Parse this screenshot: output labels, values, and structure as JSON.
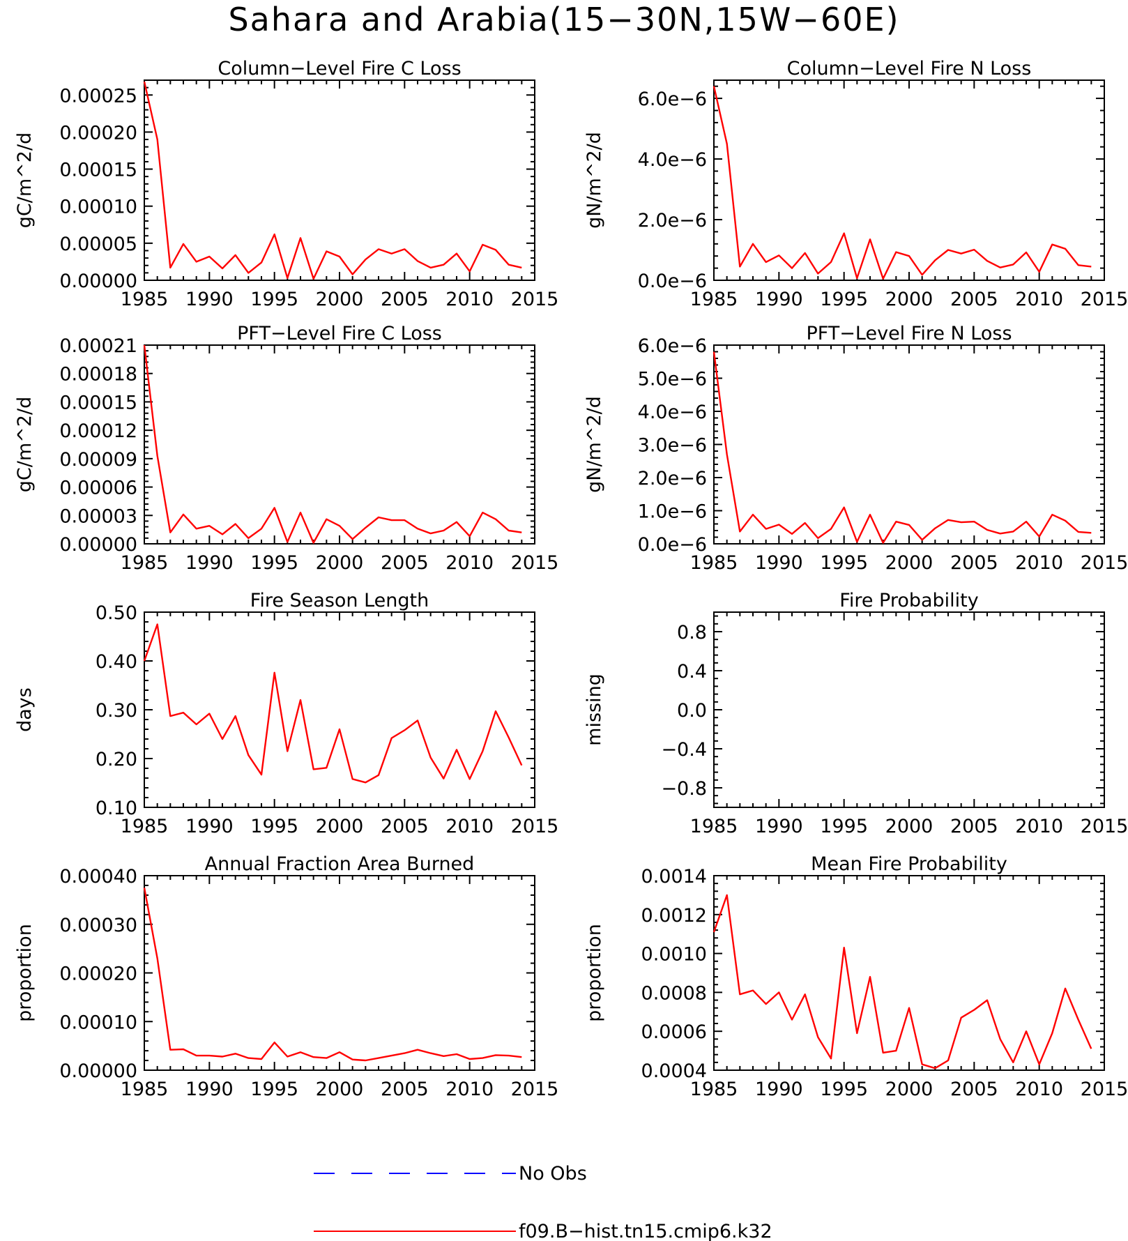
{
  "figure_title": "Sahara and Arabia(15−30N,15W−60E)",
  "legend": [
    {
      "label": "No Obs",
      "color": "#0000ff",
      "style": "dashed"
    },
    {
      "label": "f09.B−hist.tn15.cmip6.k32",
      "color": "#ff0000",
      "style": "solid"
    }
  ],
  "chart_data": [
    {
      "type": "line",
      "title": "Column−Level Fire C Loss",
      "ylabel": "gC/m^2/d",
      "xlim": [
        1985,
        2015
      ],
      "xticks": [
        1985,
        1990,
        1995,
        2000,
        2005,
        2010,
        2015
      ],
      "ylim": [
        0,
        0.00027
      ],
      "yticks": [
        0,
        5e-05,
        0.0001,
        0.00015,
        0.0002,
        0.00025
      ],
      "ytick_labels": [
        "0.00000",
        "0.00005",
        "0.00010",
        "0.00015",
        "0.00020",
        "0.00025"
      ],
      "series": [
        {
          "name": "f09.B−hist.tn15.cmip6.k32",
          "x": [
            1985,
            1986,
            1987,
            1988,
            1989,
            1990,
            1991,
            1992,
            1993,
            1994,
            1995,
            1996,
            1997,
            1998,
            1999,
            2000,
            2001,
            2002,
            2003,
            2004,
            2005,
            2006,
            2007,
            2008,
            2009,
            2010,
            2011,
            2012,
            2013,
            2014
          ],
          "y": [
            0.000268,
            0.00019,
            1.7e-05,
            4.9e-05,
            2.5e-05,
            3.2e-05,
            1.6e-05,
            3.4e-05,
            1e-05,
            2.4e-05,
            6.2e-05,
            3e-06,
            5.7e-05,
            2e-06,
            3.9e-05,
            3.2e-05,
            8e-06,
            2.8e-05,
            4.2e-05,
            3.6e-05,
            4.2e-05,
            2.6e-05,
            1.7e-05,
            2.1e-05,
            3.6e-05,
            1.2e-05,
            4.8e-05,
            4.1e-05,
            2.1e-05,
            1.7e-05
          ]
        }
      ]
    },
    {
      "type": "line",
      "title": "Column−Level Fire N Loss",
      "ylabel": "gN/m^2/d",
      "xlim": [
        1985,
        2015
      ],
      "xticks": [
        1985,
        1990,
        1995,
        2000,
        2005,
        2010,
        2015
      ],
      "ylim": [
        0,
        6.6e-06
      ],
      "yticks": [
        0,
        2e-06,
        4e-06,
        6e-06
      ],
      "ytick_labels": [
        "0.0e−6",
        "2.0e−6",
        "4.0e−6",
        "6.0e−6"
      ],
      "series": [
        {
          "name": "f09.B−hist.tn15.cmip6.k32",
          "x": [
            1985,
            1986,
            1987,
            1988,
            1989,
            1990,
            1991,
            1992,
            1993,
            1994,
            1995,
            1996,
            1997,
            1998,
            1999,
            2000,
            2001,
            2002,
            2003,
            2004,
            2005,
            2006,
            2007,
            2008,
            2009,
            2010,
            2011,
            2012,
            2013,
            2014
          ],
          "y": [
            6.4e-06,
            4.5e-06,
            4.5e-07,
            1.2e-06,
            6e-07,
            8.2e-07,
            4e-07,
            9e-07,
            2.2e-07,
            6e-07,
            1.55e-06,
            7e-08,
            1.35e-06,
            5e-08,
            9.3e-07,
            8e-07,
            1.8e-07,
            6.6e-07,
            1e-06,
            8.8e-07,
            1.01e-06,
            6.4e-07,
            4.2e-07,
            5.2e-07,
            9.2e-07,
            2.8e-07,
            1.18e-06,
            1.04e-06,
            5e-07,
            4.5e-07
          ]
        }
      ]
    },
    {
      "type": "line",
      "title": "PFT−Level Fire C Loss",
      "ylabel": "gC/m^2/d",
      "xlim": [
        1985,
        2015
      ],
      "xticks": [
        1985,
        1990,
        1995,
        2000,
        2005,
        2010,
        2015
      ],
      "ylim": [
        0,
        0.00021
      ],
      "yticks": [
        0,
        3e-05,
        6e-05,
        9e-05,
        0.00012,
        0.00015,
        0.00018,
        0.00021
      ],
      "ytick_labels": [
        "0.00000",
        "0.00003",
        "0.00006",
        "0.00009",
        "0.00012",
        "0.00015",
        "0.00018",
        "0.00021"
      ],
      "series": [
        {
          "name": "f09.B−hist.tn15.cmip6.k32",
          "x": [
            1985,
            1986,
            1987,
            1988,
            1989,
            1990,
            1991,
            1992,
            1993,
            1994,
            1995,
            1996,
            1997,
            1998,
            1999,
            2000,
            2001,
            2002,
            2003,
            2004,
            2005,
            2006,
            2007,
            2008,
            2009,
            2010,
            2011,
            2012,
            2013,
            2014
          ],
          "y": [
            0.00021,
            9.3e-05,
            1.2e-05,
            3.1e-05,
            1.6e-05,
            1.9e-05,
            1e-05,
            2.1e-05,
            6e-06,
            1.6e-05,
            3.8e-05,
            2e-06,
            3.3e-05,
            1e-06,
            2.6e-05,
            1.9e-05,
            5e-06,
            1.7e-05,
            2.8e-05,
            2.5e-05,
            2.5e-05,
            1.6e-05,
            1.1e-05,
            1.4e-05,
            2.3e-05,
            8e-06,
            3.3e-05,
            2.6e-05,
            1.4e-05,
            1.2e-05
          ]
        }
      ]
    },
    {
      "type": "line",
      "title": "PFT−Level Fire N Loss",
      "ylabel": "gN/m^2/d",
      "xlim": [
        1985,
        2015
      ],
      "xticks": [
        1985,
        1990,
        1995,
        2000,
        2005,
        2010,
        2015
      ],
      "ylim": [
        0,
        6e-06
      ],
      "yticks": [
        0,
        1e-06,
        2e-06,
        3e-06,
        4e-06,
        5e-06,
        6e-06
      ],
      "ytick_labels": [
        "0.0e−6",
        "1.0e−6",
        "2.0e−6",
        "3.0e−6",
        "4.0e−6",
        "5.0e−6",
        "6.0e−6"
      ],
      "series": [
        {
          "name": "f09.B−hist.tn15.cmip6.k32",
          "x": [
            1985,
            1986,
            1987,
            1988,
            1989,
            1990,
            1991,
            1992,
            1993,
            1994,
            1995,
            1996,
            1997,
            1998,
            1999,
            2000,
            2001,
            2002,
            2003,
            2004,
            2005,
            2006,
            2007,
            2008,
            2009,
            2010,
            2011,
            2012,
            2013,
            2014
          ],
          "y": [
            5.8e-06,
            2.7e-06,
            3.7e-07,
            8.8e-07,
            4.5e-07,
            5.8e-07,
            3e-07,
            6.3e-07,
            1.7e-07,
            4.5e-07,
            1.1e-06,
            6e-08,
            8.8e-07,
            3e-08,
            6.7e-07,
            5.7e-07,
            1.2e-07,
            4.7e-07,
            7.2e-07,
            6.5e-07,
            6.7e-07,
            4.2e-07,
            3.1e-07,
            3.7e-07,
            6.7e-07,
            2.2e-07,
            8.8e-07,
            7e-07,
            3.6e-07,
            3.3e-07
          ]
        }
      ]
    },
    {
      "type": "line",
      "title": "Fire Season Length",
      "ylabel": "days",
      "xlim": [
        1985,
        2015
      ],
      "xticks": [
        1985,
        1990,
        1995,
        2000,
        2005,
        2010,
        2015
      ],
      "ylim": [
        0.1,
        0.5
      ],
      "yticks": [
        0.1,
        0.2,
        0.3,
        0.4,
        0.5
      ],
      "ytick_labels": [
        "0.10",
        "0.20",
        "0.30",
        "0.40",
        "0.50"
      ],
      "series": [
        {
          "name": "f09.B−hist.tn15.cmip6.k32",
          "x": [
            1985,
            1986,
            1987,
            1988,
            1989,
            1990,
            1991,
            1992,
            1993,
            1994,
            1995,
            1996,
            1997,
            1998,
            1999,
            2000,
            2001,
            2002,
            2003,
            2004,
            2005,
            2006,
            2007,
            2008,
            2009,
            2010,
            2011,
            2012,
            2013,
            2014
          ],
          "y": [
            0.4,
            0.475,
            0.287,
            0.294,
            0.27,
            0.292,
            0.24,
            0.287,
            0.207,
            0.167,
            0.376,
            0.215,
            0.32,
            0.178,
            0.181,
            0.26,
            0.158,
            0.151,
            0.166,
            0.242,
            0.258,
            0.278,
            0.202,
            0.159,
            0.218,
            0.158,
            0.215,
            0.297,
            0.243,
            0.186
          ]
        }
      ]
    },
    {
      "type": "line",
      "title": "Fire Probability",
      "ylabel": "missing",
      "xlim": [
        1985,
        2015
      ],
      "xticks": [
        1985,
        1990,
        1995,
        2000,
        2005,
        2010,
        2015
      ],
      "ylim": [
        -1.0,
        1.0
      ],
      "yticks": [
        -0.8,
        -0.4,
        0.0,
        0.4,
        0.8
      ],
      "ytick_labels": [
        "−0.8",
        "−0.4",
        "0.0",
        "0.4",
        "0.8"
      ],
      "series": []
    },
    {
      "type": "line",
      "title": "Annual Fraction Area Burned",
      "ylabel": "proportion",
      "xlim": [
        1985,
        2015
      ],
      "xticks": [
        1985,
        1990,
        1995,
        2000,
        2005,
        2010,
        2015
      ],
      "ylim": [
        0,
        0.0004
      ],
      "yticks": [
        0,
        0.0001,
        0.0002,
        0.0003,
        0.0004
      ],
      "ytick_labels": [
        "0.00000",
        "0.00010",
        "0.00020",
        "0.00030",
        "0.00040"
      ],
      "series": [
        {
          "name": "f09.B−hist.tn15.cmip6.k32",
          "x": [
            1985,
            1986,
            1987,
            1988,
            1989,
            1990,
            1991,
            1992,
            1993,
            1994,
            1995,
            1996,
            1997,
            1998,
            1999,
            2000,
            2001,
            2002,
            2003,
            2004,
            2005,
            2006,
            2007,
            2008,
            2009,
            2010,
            2011,
            2012,
            2013,
            2014
          ],
          "y": [
            0.000375,
            0.00023,
            4.2e-05,
            4.3e-05,
            3e-05,
            3e-05,
            2.8e-05,
            3.4e-05,
            2.5e-05,
            2.3e-05,
            5.7e-05,
            2.8e-05,
            3.7e-05,
            2.7e-05,
            2.5e-05,
            3.7e-05,
            2.2e-05,
            2e-05,
            2.5e-05,
            3e-05,
            3.5e-05,
            4.2e-05,
            3.5e-05,
            2.9e-05,
            3.3e-05,
            2.3e-05,
            2.5e-05,
            3.1e-05,
            3e-05,
            2.7e-05
          ]
        }
      ]
    },
    {
      "type": "line",
      "title": "Mean Fire Probability",
      "ylabel": "proportion",
      "xlim": [
        1985,
        2015
      ],
      "xticks": [
        1985,
        1990,
        1995,
        2000,
        2005,
        2010,
        2015
      ],
      "ylim": [
        0.0004,
        0.0014
      ],
      "yticks": [
        0.0004,
        0.0006,
        0.0008,
        0.001,
        0.0012,
        0.0014
      ],
      "ytick_labels": [
        "0.0004",
        "0.0006",
        "0.0008",
        "0.0010",
        "0.0012",
        "0.0014"
      ],
      "series": [
        {
          "name": "f09.B−hist.tn15.cmip6.k32",
          "x": [
            1985,
            1986,
            1987,
            1988,
            1989,
            1990,
            1991,
            1992,
            1993,
            1994,
            1995,
            1996,
            1997,
            1998,
            1999,
            2000,
            2001,
            2002,
            2003,
            2004,
            2005,
            2006,
            2007,
            2008,
            2009,
            2010,
            2011,
            2012,
            2013,
            2014
          ],
          "y": [
            0.00111,
            0.0013,
            0.00079,
            0.00081,
            0.00074,
            0.0008,
            0.00066,
            0.00079,
            0.00057,
            0.00046,
            0.00103,
            0.00059,
            0.00088,
            0.00049,
            0.0005,
            0.00072,
            0.00043,
            0.00041,
            0.00045,
            0.00067,
            0.00071,
            0.00076,
            0.00056,
            0.00044,
            0.0006,
            0.00043,
            0.00059,
            0.00082,
            0.00066,
            0.00051
          ]
        }
      ]
    }
  ]
}
